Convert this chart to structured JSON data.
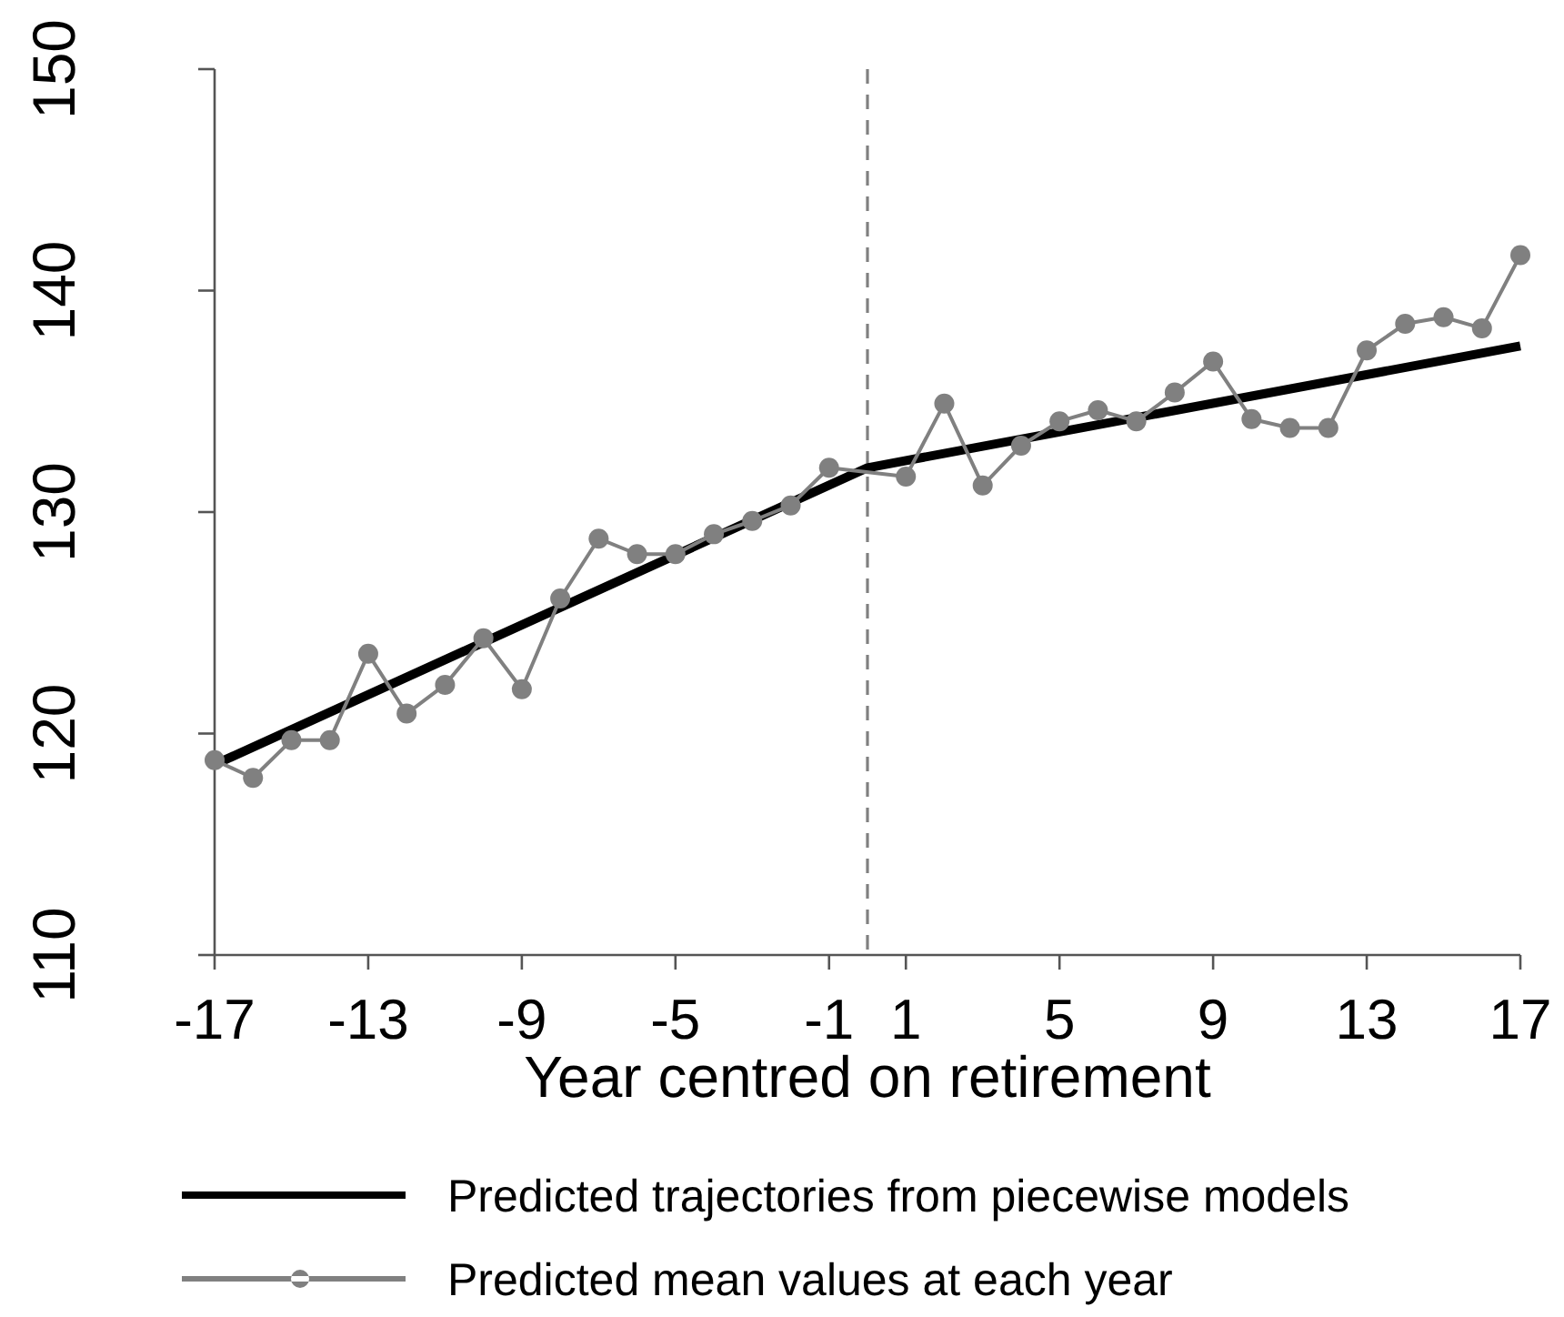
{
  "chart_data": {
    "type": "line",
    "xlabel": "Year centred on retirement",
    "xlim": [
      -17,
      17
    ],
    "xticks": [
      -17,
      -13,
      -9,
      -5,
      -1,
      1,
      5,
      9,
      13,
      17
    ],
    "ylim": [
      110,
      150
    ],
    "yticks": [
      110,
      120,
      130,
      140,
      150
    ],
    "legend": "bottom",
    "ref_lines": [
      {
        "axis": "x",
        "value": 0,
        "color": "#808080",
        "line_style": "dashed"
      }
    ],
    "series": [
      {
        "name": "Predicted trajectories from piecewise models",
        "color": "#000000",
        "marker": "none",
        "x": [
          -17,
          0,
          17
        ],
        "values": [
          118.6,
          132.0,
          137.5
        ]
      },
      {
        "name": "Predicted mean values at each year",
        "color": "#808080",
        "marker": "circle",
        "x": [
          -17,
          -16,
          -15,
          -14,
          -13,
          -12,
          -11,
          -10,
          -9,
          -8,
          -7,
          -6,
          -5,
          -4,
          -3,
          -2,
          -1,
          1,
          2,
          3,
          4,
          5,
          6,
          7,
          8,
          9,
          10,
          11,
          12,
          13,
          14,
          15,
          16,
          17
        ],
        "values": [
          118.8,
          118.0,
          119.7,
          119.7,
          123.6,
          120.9,
          122.2,
          124.3,
          122.0,
          126.1,
          128.8,
          128.1,
          128.1,
          129.0,
          129.6,
          130.3,
          132.0,
          131.6,
          134.9,
          131.2,
          133.0,
          134.1,
          134.6,
          134.1,
          135.4,
          136.8,
          134.2,
          133.8,
          133.8,
          137.3,
          138.5,
          138.8,
          138.3,
          141.6
        ]
      }
    ]
  }
}
